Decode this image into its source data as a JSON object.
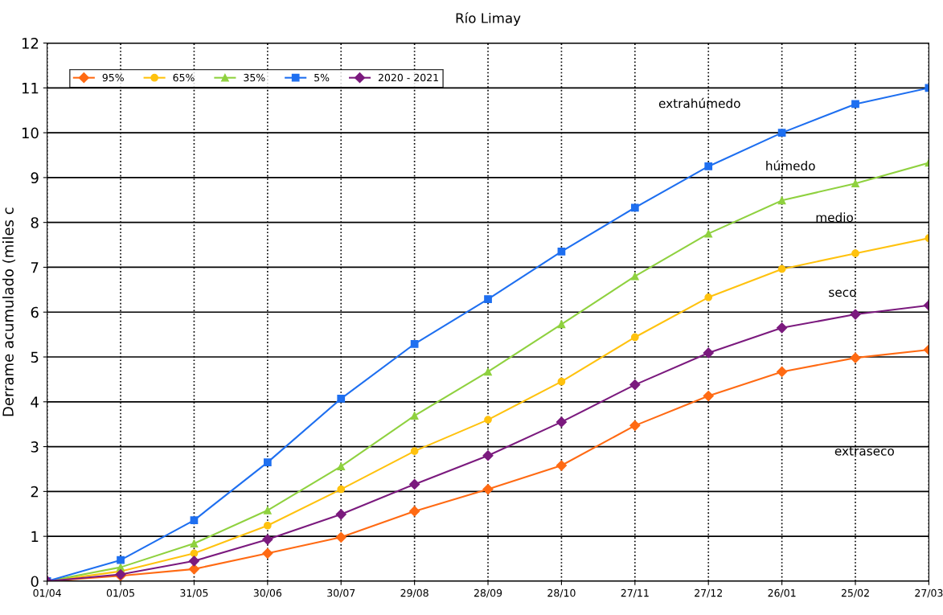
{
  "chart_data": {
    "type": "line",
    "title": "Río Limay",
    "ylabel": "Derrame acumulado (miles c",
    "categories": [
      "01/04",
      "01/05",
      "31/05",
      "30/06",
      "30/07",
      "29/08",
      "28/09",
      "28/10",
      "27/11",
      "27/12",
      "26/01",
      "25/02",
      "27/03"
    ],
    "series": [
      {
        "name": "95%",
        "color": "#ff6a13",
        "marker": "diamond",
        "values": [
          0,
          0.12,
          0.27,
          0.62,
          0.98,
          1.56,
          2.05,
          2.58,
          3.47,
          4.13,
          4.67,
          4.98,
          5.16
        ]
      },
      {
        "name": "65%",
        "color": "#ffc20e",
        "marker": "circle",
        "values": [
          0,
          0.22,
          0.62,
          1.24,
          2.05,
          2.9,
          3.6,
          4.45,
          5.44,
          6.33,
          6.96,
          7.31,
          7.65
        ]
      },
      {
        "name": "35%",
        "color": "#8fd13f",
        "marker": "triangle",
        "values": [
          0,
          0.31,
          0.84,
          1.58,
          2.56,
          3.69,
          4.67,
          5.73,
          6.8,
          7.75,
          8.49,
          8.87,
          9.33
        ]
      },
      {
        "name": "5%",
        "color": "#1e6ff0",
        "marker": "square",
        "values": [
          0,
          0.47,
          1.36,
          2.65,
          4.07,
          5.29,
          6.29,
          7.35,
          8.33,
          9.25,
          10.0,
          10.64,
          11.0
        ]
      },
      {
        "name": "2020 - 2021",
        "color": "#7b1a7e",
        "marker": "diamond",
        "values": [
          0,
          0.15,
          0.45,
          0.93,
          1.49,
          2.16,
          2.8,
          3.55,
          4.38,
          5.09,
          5.65,
          5.95,
          6.15
        ]
      }
    ],
    "annotations": [
      "extrahúmedo",
      "húmedo",
      "medio",
      "seco",
      "extraseco"
    ],
    "ylim": [
      0,
      12
    ],
    "yticks": [
      0,
      1,
      2,
      3,
      4,
      5,
      6,
      7,
      8,
      9,
      10,
      11,
      12
    ],
    "grid": true,
    "legend": "top left",
    "line_style": "solid"
  }
}
